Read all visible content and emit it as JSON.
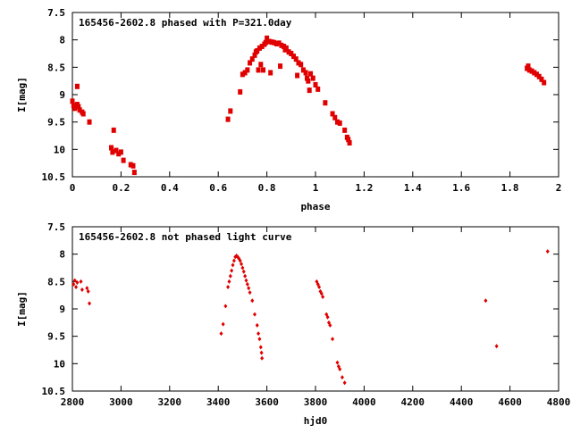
{
  "chart_data": [
    {
      "type": "scatter",
      "title": "165456-2602.8 phased with P=321.0day",
      "xlabel": "phase",
      "ylabel": "I[mag]",
      "xlim": [
        0,
        2
      ],
      "ylim": [
        10.5,
        7.5
      ],
      "y_inverted": true,
      "xticks": [
        "0",
        "0.2",
        "0.4",
        "0.6",
        "0.8",
        "1",
        "1.2",
        "1.4",
        "1.6",
        "1.8",
        "2"
      ],
      "xtick_values": [
        0,
        0.2,
        0.4,
        0.6,
        0.8,
        1.0,
        1.2,
        1.4,
        1.6,
        1.8,
        2.0
      ],
      "yticks": [
        "7.5",
        "8",
        "8.5",
        "9",
        "9.5",
        "10",
        "10.5"
      ],
      "ytick_values": [
        7.5,
        8,
        8.5,
        9,
        9.5,
        10,
        10.5
      ],
      "grid": false,
      "marker_color": "#e00000",
      "points": [
        [
          0.0,
          9.12
        ],
        [
          0.005,
          9.2
        ],
        [
          0.01,
          9.25
        ],
        [
          0.02,
          9.18
        ],
        [
          0.02,
          8.85
        ],
        [
          0.025,
          9.22
        ],
        [
          0.03,
          9.28
        ],
        [
          0.04,
          9.32
        ],
        [
          0.045,
          9.35
        ],
        [
          0.07,
          9.5
        ],
        [
          0.16,
          9.97
        ],
        [
          0.165,
          10.05
        ],
        [
          0.17,
          9.65
        ],
        [
          0.18,
          10.02
        ],
        [
          0.19,
          10.08
        ],
        [
          0.2,
          10.05
        ],
        [
          0.21,
          10.2
        ],
        [
          0.24,
          10.28
        ],
        [
          0.25,
          10.3
        ],
        [
          0.255,
          10.42
        ],
        [
          0.64,
          9.45
        ],
        [
          0.65,
          9.3
        ],
        [
          0.69,
          8.95
        ],
        [
          0.7,
          8.63
        ],
        [
          0.71,
          8.6
        ],
        [
          0.72,
          8.55
        ],
        [
          0.73,
          8.42
        ],
        [
          0.74,
          8.35
        ],
        [
          0.75,
          8.28
        ],
        [
          0.755,
          8.22
        ],
        [
          0.76,
          8.2
        ],
        [
          0.765,
          8.55
        ],
        [
          0.77,
          8.15
        ],
        [
          0.775,
          8.45
        ],
        [
          0.78,
          8.12
        ],
        [
          0.785,
          8.55
        ],
        [
          0.79,
          8.08
        ],
        [
          0.795,
          8.05
        ],
        [
          0.8,
          7.97
        ],
        [
          0.81,
          8.03
        ],
        [
          0.815,
          8.6
        ],
        [
          0.82,
          8.04
        ],
        [
          0.83,
          8.05
        ],
        [
          0.84,
          8.07
        ],
        [
          0.85,
          8.06
        ],
        [
          0.855,
          8.48
        ],
        [
          0.86,
          8.1
        ],
        [
          0.87,
          8.12
        ],
        [
          0.875,
          8.18
        ],
        [
          0.88,
          8.15
        ],
        [
          0.89,
          8.22
        ],
        [
          0.9,
          8.25
        ],
        [
          0.91,
          8.3
        ],
        [
          0.92,
          8.35
        ],
        [
          0.93,
          8.42
        ],
        [
          0.925,
          8.65
        ],
        [
          0.94,
          8.45
        ],
        [
          0.95,
          8.55
        ],
        [
          0.96,
          8.6
        ],
        [
          0.965,
          8.7
        ],
        [
          0.97,
          8.75
        ],
        [
          0.975,
          8.92
        ],
        [
          0.98,
          8.62
        ],
        [
          0.99,
          8.7
        ],
        [
          1.0,
          8.82
        ],
        [
          1.01,
          8.9
        ],
        [
          1.04,
          9.15
        ],
        [
          1.07,
          9.35
        ],
        [
          1.08,
          9.42
        ],
        [
          1.09,
          9.5
        ],
        [
          1.1,
          9.52
        ],
        [
          1.12,
          9.65
        ],
        [
          1.13,
          9.78
        ],
        [
          1.135,
          9.82
        ],
        [
          1.14,
          9.88
        ],
        [
          1.87,
          8.52
        ],
        [
          1.875,
          8.48
        ],
        [
          1.88,
          8.55
        ],
        [
          1.89,
          8.57
        ],
        [
          1.9,
          8.6
        ],
        [
          1.91,
          8.63
        ],
        [
          1.92,
          8.67
        ],
        [
          1.93,
          8.72
        ],
        [
          1.94,
          8.78
        ]
      ]
    },
    {
      "type": "scatter",
      "title": "165456-2602.8 not phased light curve",
      "xlabel": "hjd0",
      "ylabel": "I[mag]",
      "xlim": [
        2800,
        4800
      ],
      "ylim": [
        10.5,
        7.5
      ],
      "y_inverted": true,
      "xticks": [
        "2800",
        "3000",
        "3200",
        "3400",
        "3600",
        "3800",
        "4000",
        "4200",
        "4400",
        "4600",
        "4800"
      ],
      "xtick_values": [
        2800,
        3000,
        3200,
        3400,
        3600,
        3800,
        4000,
        4200,
        4400,
        4600,
        4800
      ],
      "yticks": [
        "7.5",
        "8",
        "8.5",
        "9",
        "9.5",
        "10",
        "10.5"
      ],
      "ytick_values": [
        7.5,
        8,
        8.5,
        9,
        9.5,
        10,
        10.5
      ],
      "grid": false,
      "marker_color": "#e00000",
      "points": [
        [
          2805,
          8.55
        ],
        [
          2810,
          8.48
        ],
        [
          2815,
          8.6
        ],
        [
          2820,
          8.52
        ],
        [
          2835,
          8.5
        ],
        [
          2840,
          8.65
        ],
        [
          2860,
          8.62
        ],
        [
          2865,
          8.68
        ],
        [
          2870,
          8.9
        ],
        [
          3412,
          9.45
        ],
        [
          3420,
          9.28
        ],
        [
          3430,
          8.95
        ],
        [
          3440,
          8.6
        ],
        [
          3445,
          8.5
        ],
        [
          3450,
          8.4
        ],
        [
          3455,
          8.3
        ],
        [
          3460,
          8.2
        ],
        [
          3465,
          8.12
        ],
        [
          3470,
          8.05
        ],
        [
          3475,
          8.03
        ],
        [
          3480,
          8.05
        ],
        [
          3485,
          8.08
        ],
        [
          3490,
          8.12
        ],
        [
          3495,
          8.18
        ],
        [
          3500,
          8.25
        ],
        [
          3505,
          8.32
        ],
        [
          3510,
          8.4
        ],
        [
          3515,
          8.48
        ],
        [
          3520,
          8.55
        ],
        [
          3525,
          8.62
        ],
        [
          3530,
          8.7
        ],
        [
          3540,
          8.85
        ],
        [
          3550,
          9.1
        ],
        [
          3560,
          9.3
        ],
        [
          3565,
          9.45
        ],
        [
          3570,
          9.55
        ],
        [
          3575,
          9.7
        ],
        [
          3578,
          9.8
        ],
        [
          3580,
          9.9
        ],
        [
          3805,
          8.5
        ],
        [
          3810,
          8.55
        ],
        [
          3815,
          8.6
        ],
        [
          3820,
          8.68
        ],
        [
          3825,
          8.72
        ],
        [
          3830,
          8.78
        ],
        [
          3845,
          9.1
        ],
        [
          3850,
          9.15
        ],
        [
          3855,
          9.25
        ],
        [
          3860,
          9.3
        ],
        [
          3870,
          9.55
        ],
        [
          3890,
          9.98
        ],
        [
          3895,
          10.05
        ],
        [
          3900,
          10.1
        ],
        [
          3910,
          10.25
        ],
        [
          3920,
          10.35
        ],
        [
          4500,
          8.85
        ],
        [
          4545,
          9.68
        ],
        [
          4755,
          7.95
        ]
      ]
    }
  ]
}
